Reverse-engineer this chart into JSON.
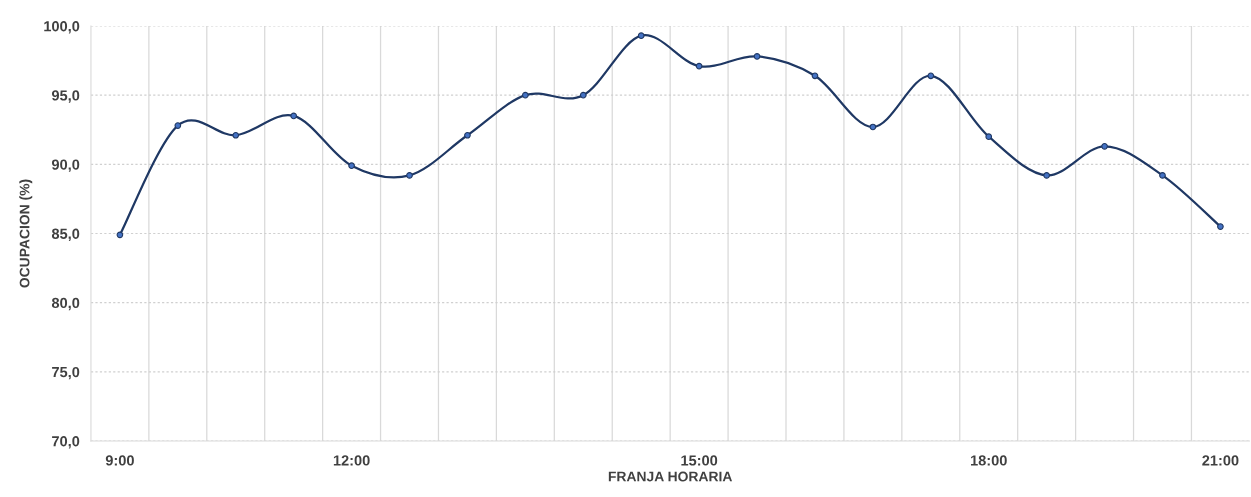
{
  "chart_data": {
    "type": "line",
    "xlabel": "FRANJA HORARIA",
    "ylabel": "OCUPACION (%)",
    "categories": [
      "9:00",
      null,
      null,
      null,
      "12:00",
      null,
      null,
      null,
      null,
      null,
      "15:00",
      null,
      null,
      null,
      null,
      "18:00",
      null,
      null,
      null,
      "21:00"
    ],
    "series": [
      {
        "color": "#1f3864",
        "values": [
          84.9,
          92.8,
          92.1,
          93.5,
          89.9,
          89.2,
          92.1,
          95.0,
          95.0,
          99.3,
          97.1,
          97.8,
          96.4,
          92.7,
          96.4,
          92.0,
          89.2,
          91.3,
          89.2,
          85.5
        ]
      }
    ],
    "ylim": [
      70,
      100
    ],
    "yticks": [
      {
        "value": 70,
        "label": "70,0"
      },
      {
        "value": 75,
        "label": "75,0"
      },
      {
        "value": 80,
        "label": "80,0"
      },
      {
        "value": 85,
        "label": "85,0"
      },
      {
        "value": 90,
        "label": "90,0"
      },
      {
        "value": 95,
        "label": "95,0"
      },
      {
        "value": 100,
        "label": "100,0"
      }
    ],
    "grid": true,
    "marker": "circle",
    "line_style": "solid",
    "legend": false
  }
}
